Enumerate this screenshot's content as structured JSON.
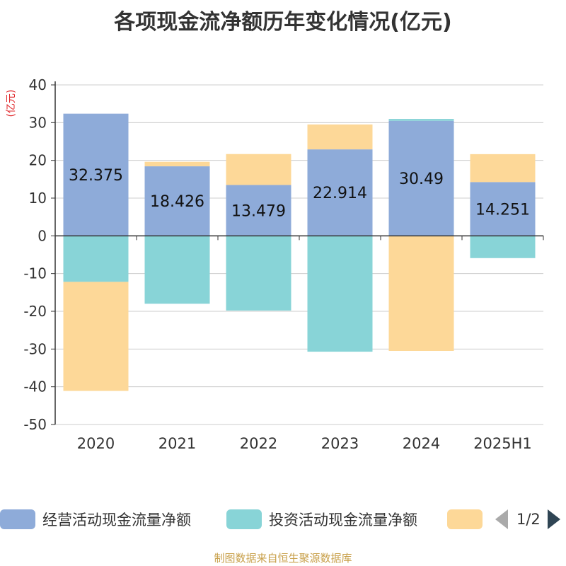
{
  "title": "各项现金流净额历年变化情况(亿元)",
  "unit_label": "(亿元)",
  "source": "制图数据来自恒生聚源数据库",
  "legend": {
    "items": [
      {
        "label": "经营活动现金流量净额",
        "color": "#8eabd9"
      },
      {
        "label": "投资活动现金流量净额",
        "color": "#88d4d7"
      },
      {
        "label": "",
        "color": "#fdd898"
      }
    ],
    "pager": "1/2"
  },
  "chart_data": {
    "type": "bar",
    "stacked": true,
    "categories": [
      "2020",
      "2021",
      "2022",
      "2023",
      "2024",
      "2025H1"
    ],
    "series": [
      {
        "name": "经营活动现金流量净额",
        "color": "#8eabd9",
        "values": [
          32.375,
          18.426,
          13.479,
          22.914,
          30.49,
          14.251
        ],
        "labels": [
          "32.375",
          "18.426",
          "13.479",
          "22.914",
          "30.49",
          "14.251"
        ]
      },
      {
        "name": "投资活动现金流量净额",
        "color": "#88d4d7",
        "values": [
          -12.2,
          -18.0,
          -19.8,
          -30.7,
          0.5,
          -5.9
        ]
      },
      {
        "name": "",
        "color": "#fdd898",
        "values": [
          -28.9,
          1.2,
          8.2,
          6.6,
          -30.5,
          7.4
        ]
      }
    ],
    "ylim": [
      -50,
      40
    ],
    "yticks": [
      40,
      30,
      20,
      10,
      0,
      -10,
      -20,
      -30,
      -40,
      -50
    ],
    "grid": true
  }
}
